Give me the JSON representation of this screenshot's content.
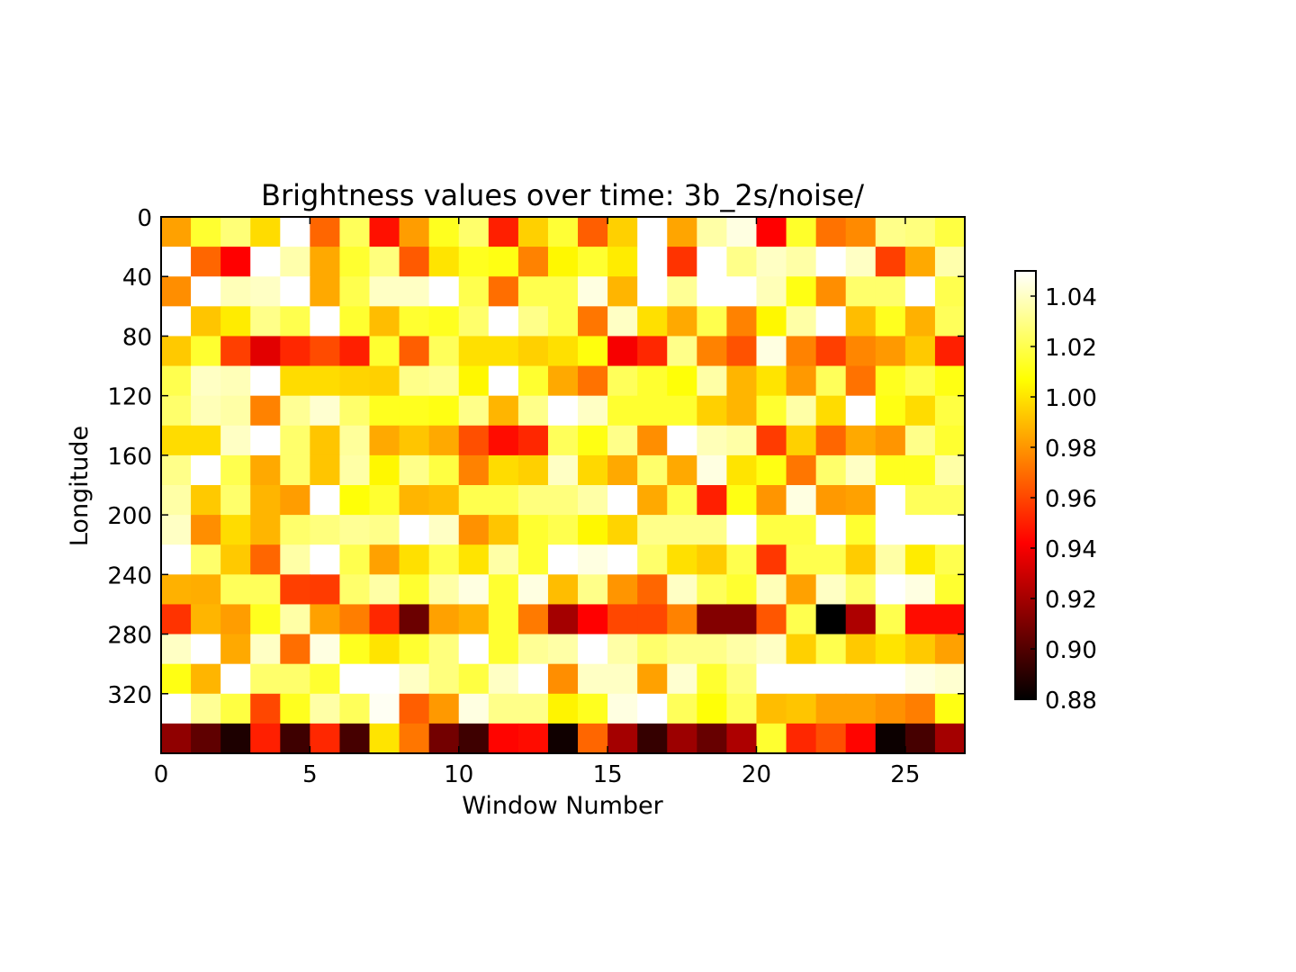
{
  "chart_data": {
    "type": "heatmap",
    "title": "Brightness values over time: 3b_2s/noise/",
    "xlabel": "Window Number",
    "ylabel": "Longitude",
    "xlim": [
      0,
      27
    ],
    "ylim": [
      0,
      360
    ],
    "x_ticks": [
      0,
      5,
      10,
      15,
      20,
      25
    ],
    "y_ticks": [
      0,
      40,
      80,
      120,
      160,
      200,
      240,
      280,
      320
    ],
    "y_inverted": true,
    "colormap": "hot",
    "colorbar": {
      "min": 0.88,
      "max": 1.05,
      "ticks": [
        "0.88",
        "0.90",
        "0.92",
        "0.94",
        "0.96",
        "0.98",
        "1.00",
        "1.02",
        "1.04"
      ]
    },
    "cell_width": 1,
    "cell_height": 20,
    "values": [
      [
        0.983,
        1.015,
        1.027,
        0.998,
        1.05,
        0.968,
        1.022,
        0.946,
        0.982,
        1.012,
        1.025,
        0.95,
        0.995,
        1.016,
        0.966,
        0.995,
        1.05,
        0.984,
        1.035,
        1.045,
        0.942,
        1.014,
        0.971,
        0.977,
        1.03,
        1.028,
        1.018
      ],
      [
        1.05,
        0.968,
        0.942,
        1.05,
        1.036,
        0.985,
        1.015,
        1.028,
        0.965,
        1.0,
        1.012,
        1.01,
        0.975,
        1.005,
        1.015,
        1.002,
        1.05,
        0.955,
        1.05,
        1.03,
        1.04,
        1.035,
        1.05,
        1.04,
        0.958,
        0.985,
        1.036
      ],
      [
        0.978,
        1.05,
        1.038,
        1.04,
        1.05,
        0.985,
        1.02,
        1.04,
        1.04,
        1.05,
        1.02,
        0.97,
        1.02,
        1.02,
        1.045,
        0.988,
        1.05,
        1.032,
        1.05,
        1.05,
        1.038,
        1.01,
        0.978,
        1.025,
        1.025,
        1.05,
        1.02
      ],
      [
        1.05,
        0.992,
        1.002,
        1.03,
        1.02,
        1.05,
        1.015,
        0.99,
        1.015,
        1.012,
        1.025,
        1.05,
        1.03,
        1.02,
        0.972,
        1.04,
        0.999,
        0.985,
        1.02,
        0.975,
        1.005,
        1.035,
        1.05,
        0.99,
        1.012,
        0.987,
        1.022
      ],
      [
        0.993,
        1.015,
        0.958,
        0.935,
        0.952,
        0.961,
        0.95,
        1.015,
        0.966,
        1.022,
        0.999,
        0.999,
        0.995,
        0.999,
        1.009,
        0.94,
        0.952,
        1.03,
        0.975,
        0.963,
        1.045,
        0.975,
        0.958,
        0.976,
        0.981,
        0.993,
        0.95
      ],
      [
        1.02,
        1.04,
        1.038,
        1.05,
        0.998,
        0.998,
        0.996,
        0.995,
        1.03,
        1.032,
        1.005,
        1.05,
        1.015,
        0.985,
        0.971,
        1.022,
        1.015,
        1.008,
        1.035,
        0.988,
        1.0,
        0.981,
        1.022,
        0.971,
        1.012,
        1.02,
        1.01
      ],
      [
        1.025,
        1.038,
        1.035,
        0.975,
        1.032,
        1.042,
        1.025,
        1.012,
        1.012,
        1.01,
        1.03,
        0.988,
        1.03,
        1.05,
        1.04,
        1.015,
        1.015,
        1.015,
        0.995,
        0.988,
        1.015,
        1.035,
        0.998,
        1.05,
        1.01,
        0.998,
        1.018
      ],
      [
        0.998,
        0.998,
        1.04,
        1.05,
        1.025,
        0.992,
        1.033,
        0.985,
        0.992,
        0.985,
        0.962,
        0.945,
        0.952,
        1.022,
        1.01,
        1.03,
        0.978,
        1.05,
        1.038,
        1.035,
        0.957,
        0.995,
        0.968,
        0.985,
        0.98,
        1.03,
        1.015
      ],
      [
        1.03,
        1.05,
        1.02,
        0.985,
        1.025,
        0.992,
        1.035,
        1.005,
        1.03,
        1.018,
        0.975,
        0.998,
        0.995,
        1.04,
        0.997,
        0.985,
        1.025,
        0.985,
        1.045,
        1.0,
        1.01,
        0.972,
        1.025,
        1.04,
        1.012,
        1.012,
        1.035
      ],
      [
        1.035,
        0.993,
        1.025,
        0.988,
        0.982,
        1.05,
        1.008,
        1.015,
        0.988,
        0.99,
        1.02,
        1.02,
        1.028,
        1.028,
        1.035,
        1.05,
        0.985,
        1.02,
        0.95,
        1.01,
        0.98,
        1.045,
        0.981,
        0.983,
        1.05,
        1.022,
        1.022
      ],
      [
        1.04,
        0.978,
        0.998,
        0.988,
        1.025,
        1.028,
        1.032,
        1.03,
        1.05,
        1.04,
        0.979,
        0.992,
        1.015,
        1.02,
        1.005,
        0.996,
        1.03,
        1.03,
        1.03,
        1.05,
        1.018,
        1.018,
        1.05,
        1.015,
        1.05,
        1.05,
        1.05
      ],
      [
        1.05,
        1.025,
        0.993,
        0.968,
        1.035,
        1.05,
        1.02,
        0.983,
        0.999,
        1.02,
        1.0,
        1.035,
        1.015,
        1.05,
        1.045,
        1.05,
        1.025,
        0.999,
        0.994,
        1.02,
        0.956,
        1.02,
        1.02,
        0.994,
        1.035,
        1.002,
        1.02
      ],
      [
        0.987,
        0.986,
        1.022,
        1.022,
        0.958,
        0.957,
        1.025,
        1.035,
        1.015,
        1.035,
        1.045,
        1.015,
        1.045,
        0.99,
        1.03,
        0.98,
        0.968,
        1.04,
        1.022,
        1.015,
        1.038,
        0.983,
        1.04,
        1.025,
        1.05,
        1.045,
        1.015
      ],
      [
        0.955,
        0.988,
        0.982,
        1.012,
        1.035,
        0.983,
        0.974,
        0.952,
        0.906,
        0.983,
        0.987,
        1.015,
        0.973,
        0.92,
        0.942,
        0.96,
        0.96,
        0.975,
        0.912,
        0.912,
        0.964,
        1.02,
        0.88,
        0.922,
        1.02,
        0.945,
        0.945
      ],
      [
        1.04,
        1.05,
        0.985,
        1.04,
        0.97,
        1.045,
        1.012,
        1.0,
        1.015,
        1.028,
        1.05,
        1.015,
        1.032,
        1.035,
        1.05,
        1.035,
        1.025,
        1.03,
        1.03,
        1.035,
        1.04,
        0.995,
        1.02,
        0.993,
        1.0,
        0.993,
        0.983
      ],
      [
        1.01,
        0.988,
        1.05,
        1.025,
        1.025,
        1.015,
        1.05,
        1.05,
        1.04,
        1.028,
        1.018,
        1.04,
        1.05,
        0.978,
        1.04,
        1.04,
        0.983,
        1.042,
        1.015,
        1.028,
        1.05,
        1.05,
        1.05,
        1.05,
        1.05,
        1.045,
        1.042
      ],
      [
        1.05,
        1.032,
        1.018,
        0.96,
        1.012,
        1.035,
        1.022,
        1.048,
        0.966,
        0.981,
        1.045,
        1.03,
        1.03,
        1.004,
        1.012,
        1.045,
        1.05,
        1.022,
        1.008,
        1.022,
        0.99,
        0.992,
        0.983,
        0.983,
        0.979,
        0.974,
        1.01
      ],
      [
        0.915,
        0.903,
        0.887,
        0.95,
        0.895,
        0.952,
        0.897,
        1.0,
        0.972,
        0.908,
        0.895,
        0.943,
        0.945,
        0.884,
        0.968,
        0.92,
        0.893,
        0.918,
        0.905,
        0.922,
        1.015,
        0.952,
        0.962,
        0.943,
        0.883,
        0.897,
        0.92
      ]
    ]
  }
}
